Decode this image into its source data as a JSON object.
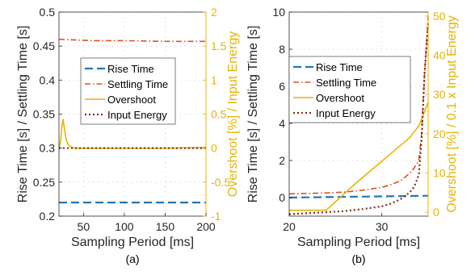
{
  "colors": {
    "rise": "#1f77bd",
    "settling": "#d9541a",
    "overshoot": "#e6b400",
    "energy": "#7e2f1a",
    "axis": "#262626",
    "grid": "#c0c0c0"
  },
  "chart_data": [
    {
      "type": "line",
      "subtitle": "(a)",
      "xlabel": "Sampling Period [ms]",
      "ylabel": "Rise Time [s] / Settling Time [s]",
      "y2label": "Overshoot [%] / Input Energy",
      "xlim": [
        20,
        200
      ],
      "ylim": [
        0.2,
        0.5
      ],
      "y2lim": [
        -1,
        2
      ],
      "xticks": [
        "50",
        "100",
        "150",
        "200"
      ],
      "xtick_values": [
        50,
        100,
        150,
        200
      ],
      "yticks": [
        "0.2",
        "0.25",
        "0.3",
        "0.35",
        "0.4",
        "0.45",
        "0.5"
      ],
      "ytick_values": [
        0.2,
        0.25,
        0.3,
        0.35,
        0.4,
        0.45,
        0.5
      ],
      "y2ticks": [
        "-1",
        "-0.5",
        "0",
        "0.5",
        "1",
        "1.5",
        "2"
      ],
      "y2tick_values": [
        -1,
        -0.5,
        0,
        0.5,
        1,
        1.5,
        2
      ],
      "grid": true,
      "legend_position": "center",
      "legend": [
        "Rise Time",
        "Settling Time",
        "Overshoot",
        "Input Energy"
      ],
      "series": [
        {
          "name": "Rise Time",
          "axis": "left",
          "style": "dashed",
          "x": [
            20,
            200
          ],
          "y": [
            0.22,
            0.22
          ]
        },
        {
          "name": "Settling Time",
          "axis": "left",
          "style": "dashdot",
          "x": [
            20,
            40,
            60,
            100,
            150,
            200
          ],
          "y": [
            0.46,
            0.459,
            0.458,
            0.458,
            0.457,
            0.457
          ]
        },
        {
          "name": "Overshoot",
          "axis": "right",
          "style": "solid",
          "x": [
            20,
            22,
            24,
            25,
            26,
            28,
            30,
            33,
            36,
            40,
            50,
            100,
            150,
            200
          ],
          "y": [
            0.0,
            0.1,
            0.35,
            0.42,
            0.34,
            0.18,
            0.08,
            0.03,
            0.01,
            0.0,
            0.0,
            0.0,
            0.0,
            0.01
          ]
        },
        {
          "name": "Input Energy",
          "axis": "right",
          "style": "dotted",
          "x": [
            20,
            50,
            100,
            150,
            200
          ],
          "y": [
            0.0,
            0.0,
            0.0,
            0.0,
            0.0
          ]
        }
      ]
    },
    {
      "type": "line",
      "subtitle": "(b)",
      "xlabel": "Sampling Period [ms]",
      "ylabel": "Rise Time [s] / Settling Time [s]",
      "y2label": "Overshoot [%] / 0.1 x Input Energy",
      "xlim": [
        20,
        35
      ],
      "ylim": [
        -1,
        10
      ],
      "y2lim": [
        -1,
        51
      ],
      "xticks": [
        "20",
        "30"
      ],
      "xtick_values": [
        20,
        30
      ],
      "yticks": [
        "0",
        "2",
        "4",
        "6",
        "8",
        "10"
      ],
      "ytick_values": [
        0,
        2,
        4,
        6,
        8,
        10
      ],
      "y2ticks": [
        "0",
        "10",
        "20",
        "30",
        "40",
        "50"
      ],
      "y2tick_values": [
        0,
        10,
        20,
        30,
        40,
        50
      ],
      "grid": true,
      "legend_position": "center",
      "legend": [
        "Rise Time",
        "Settling Time",
        "Overshoot",
        "Input Energy"
      ],
      "series": [
        {
          "name": "Rise Time",
          "axis": "left",
          "style": "dashed",
          "x": [
            20,
            35
          ],
          "y": [
            0.0,
            0.1
          ]
        },
        {
          "name": "Settling Time",
          "axis": "left",
          "style": "dashdot",
          "x": [
            20,
            24,
            26,
            28,
            30,
            31,
            32,
            33,
            33.5,
            34,
            34.3,
            34.6,
            35
          ],
          "y": [
            0.2,
            0.25,
            0.3,
            0.4,
            0.55,
            0.7,
            0.9,
            1.3,
            1.6,
            2.0,
            3.5,
            6.5,
            9.8
          ]
        },
        {
          "name": "Overshoot",
          "axis": "right",
          "style": "solid",
          "x": [
            20,
            24,
            27,
            29,
            31,
            33,
            34,
            35
          ],
          "y": [
            0.5,
            0.5,
            7.0,
            11.0,
            15.0,
            19.0,
            22.0,
            28.0
          ]
        },
        {
          "name": "Input Energy",
          "axis": "right",
          "style": "dotted",
          "x": [
            20,
            24,
            26,
            28,
            30,
            31,
            32,
            33,
            33.5,
            34,
            34.3,
            34.6,
            35
          ],
          "y": [
            -0.5,
            0.0,
            0.3,
            0.8,
            1.5,
            2.2,
            3.3,
            5.0,
            6.5,
            9.5,
            19.0,
            35.0,
            48.0
          ]
        }
      ]
    }
  ]
}
